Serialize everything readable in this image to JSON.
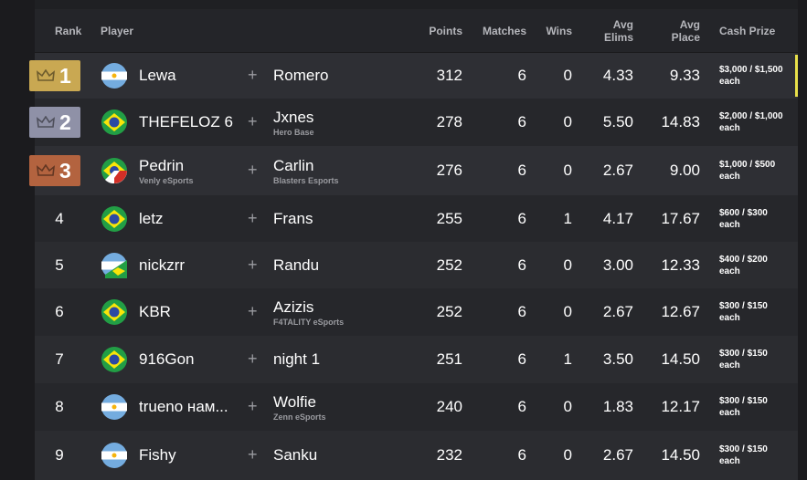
{
  "table": {
    "headers": [
      "Rank",
      "Player",
      "Points",
      "Matches",
      "Wins",
      "Avg Elims",
      "Avg Place",
      "Cash Prize"
    ],
    "separator": "+",
    "rows": [
      {
        "rank": 1,
        "players": [
          {
            "name": "Lewa"
          },
          {
            "name": "Romero"
          }
        ],
        "points": 312,
        "matches": 6,
        "wins": 0,
        "avg_elims": "4.33",
        "avg_place": "9.33",
        "cash_prize": "$3,000 / $1,500 each"
      },
      {
        "rank": 2,
        "players": [
          {
            "name": "THEFELOZ 6"
          },
          {
            "name": "Jxnes",
            "team": "Hero Base"
          }
        ],
        "points": 278,
        "matches": 6,
        "wins": 0,
        "avg_elims": "5.50",
        "avg_place": "14.83",
        "cash_prize": "$2,000 / $1,000 each"
      },
      {
        "rank": 3,
        "players": [
          {
            "name": "Pedrin",
            "team": "Venly eSports"
          },
          {
            "name": "Carlin",
            "team": "Blasters Esports"
          }
        ],
        "points": 276,
        "matches": 6,
        "wins": 0,
        "avg_elims": "2.67",
        "avg_place": "9.00",
        "cash_prize": "$1,000 / $500 each"
      },
      {
        "rank": 4,
        "players": [
          {
            "name": "letz"
          },
          {
            "name": "Frans"
          }
        ],
        "points": 255,
        "matches": 6,
        "wins": 1,
        "avg_elims": "4.17",
        "avg_place": "17.67",
        "cash_prize": "$600 / $300 each"
      },
      {
        "rank": 5,
        "players": [
          {
            "name": "nickzrr"
          },
          {
            "name": "Randu"
          }
        ],
        "points": 252,
        "matches": 6,
        "wins": 0,
        "avg_elims": "3.00",
        "avg_place": "12.33",
        "cash_prize": "$400 / $200 each"
      },
      {
        "rank": 6,
        "players": [
          {
            "name": "KBR"
          },
          {
            "name": "Azizis",
            "team": "F4TALITY eSports"
          }
        ],
        "points": 252,
        "matches": 6,
        "wins": 0,
        "avg_elims": "2.67",
        "avg_place": "12.67",
        "cash_prize": "$300 / $150 each"
      },
      {
        "rank": 7,
        "players": [
          {
            "name": "916Gon"
          },
          {
            "name": "night 1"
          }
        ],
        "points": 251,
        "matches": 6,
        "wins": 1,
        "avg_elims": "3.50",
        "avg_place": "14.50",
        "cash_prize": "$300 / $150 each"
      },
      {
        "rank": 8,
        "players": [
          {
            "name": "trueno нам..."
          },
          {
            "name": "Wolfie",
            "team": "Zenn eSports"
          }
        ],
        "points": 240,
        "matches": 6,
        "wins": 0,
        "avg_elims": "1.83",
        "avg_place": "12.17",
        "cash_prize": "$300 / $150 each"
      },
      {
        "rank": 9,
        "players": [
          {
            "name": "Fishy"
          },
          {
            "name": "Sanku"
          }
        ],
        "points": 232,
        "matches": 6,
        "wins": 0,
        "avg_elims": "2.67",
        "avg_place": "14.50",
        "cash_prize": "$300 / $150 each"
      }
    ]
  }
}
